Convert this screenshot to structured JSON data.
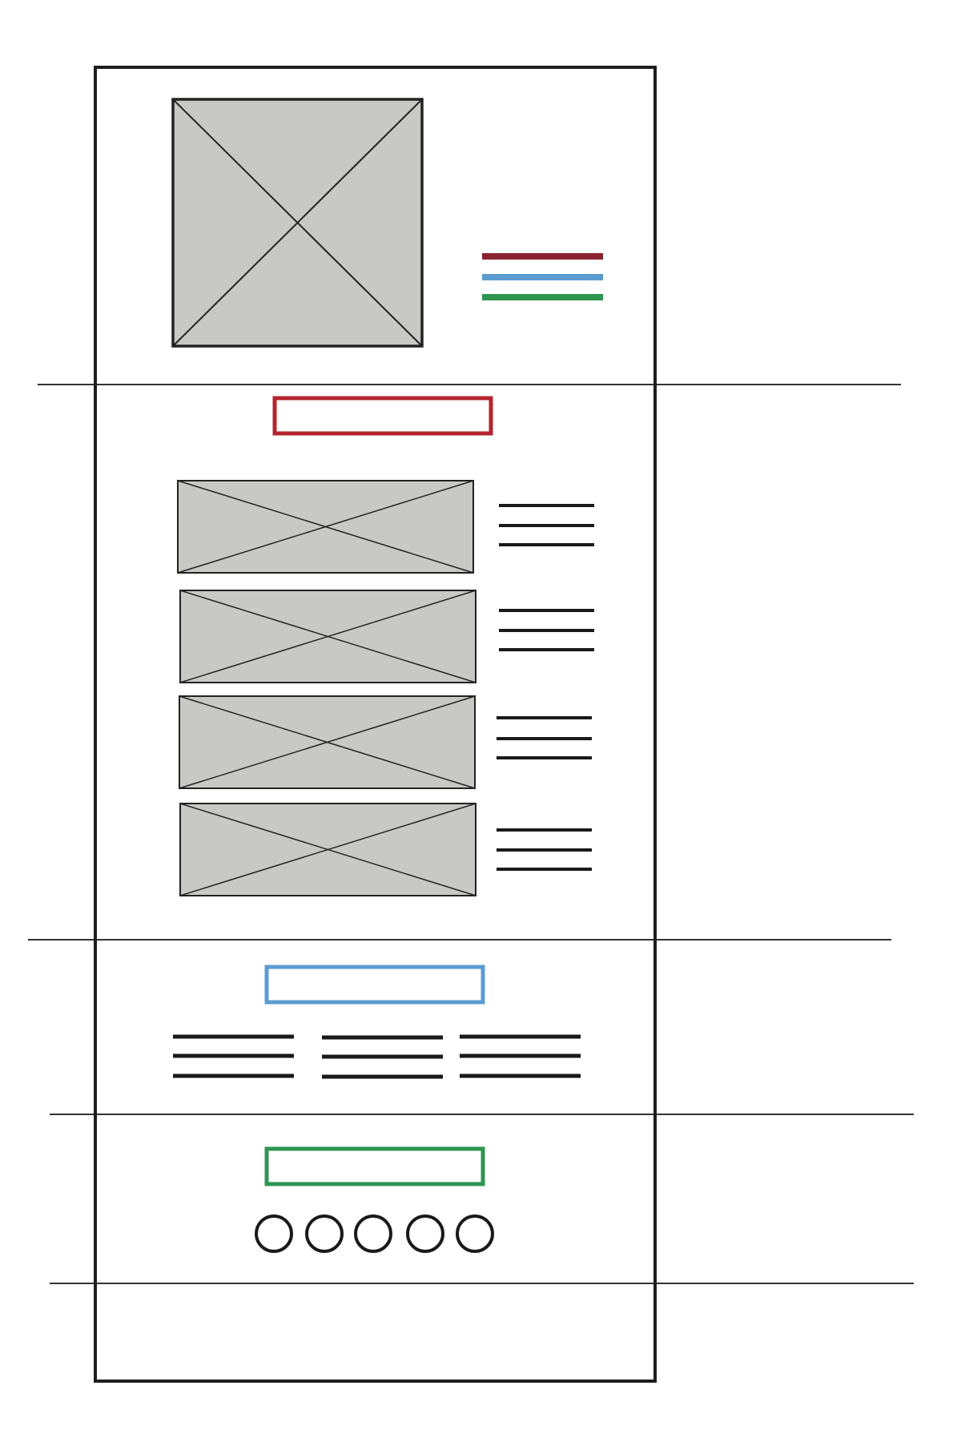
{
  "colors": {
    "background": "#ffffff",
    "frame": "#1e1e1e",
    "divider": "#333333",
    "placeholder_fill": "#c8c8c5",
    "placeholder_stroke": "#222222",
    "text_line": "#1a1a1a",
    "accent_red": "#b5242e",
    "accent_maroon": "#8b2230",
    "accent_blue": "#5b9bd0",
    "accent_green": "#2e9450",
    "circle_stroke": "#1a1a1a"
  },
  "header": {
    "logo": {
      "icon": "image-placeholder-icon"
    },
    "nav_lines": [
      "accent_maroon",
      "accent_blue",
      "accent_green"
    ]
  },
  "section_1": {
    "heading_box": {
      "color": "accent_red"
    },
    "items": [
      {
        "icon": "image-placeholder-icon",
        "text_lines": 3
      },
      {
        "icon": "image-placeholder-icon",
        "text_lines": 3
      },
      {
        "icon": "image-placeholder-icon",
        "text_lines": 3
      },
      {
        "icon": "image-placeholder-icon",
        "text_lines": 3
      }
    ]
  },
  "section_2": {
    "heading_box": {
      "color": "accent_blue"
    },
    "columns": [
      {
        "text_lines": 3
      },
      {
        "text_lines": 3
      },
      {
        "text_lines": 3
      }
    ]
  },
  "section_3": {
    "heading_box": {
      "color": "accent_green"
    },
    "circles": [
      {
        "icon": "circle-icon"
      },
      {
        "icon": "circle-icon"
      },
      {
        "icon": "circle-icon"
      },
      {
        "icon": "circle-icon"
      },
      {
        "icon": "circle-icon"
      }
    ]
  },
  "footer": {}
}
